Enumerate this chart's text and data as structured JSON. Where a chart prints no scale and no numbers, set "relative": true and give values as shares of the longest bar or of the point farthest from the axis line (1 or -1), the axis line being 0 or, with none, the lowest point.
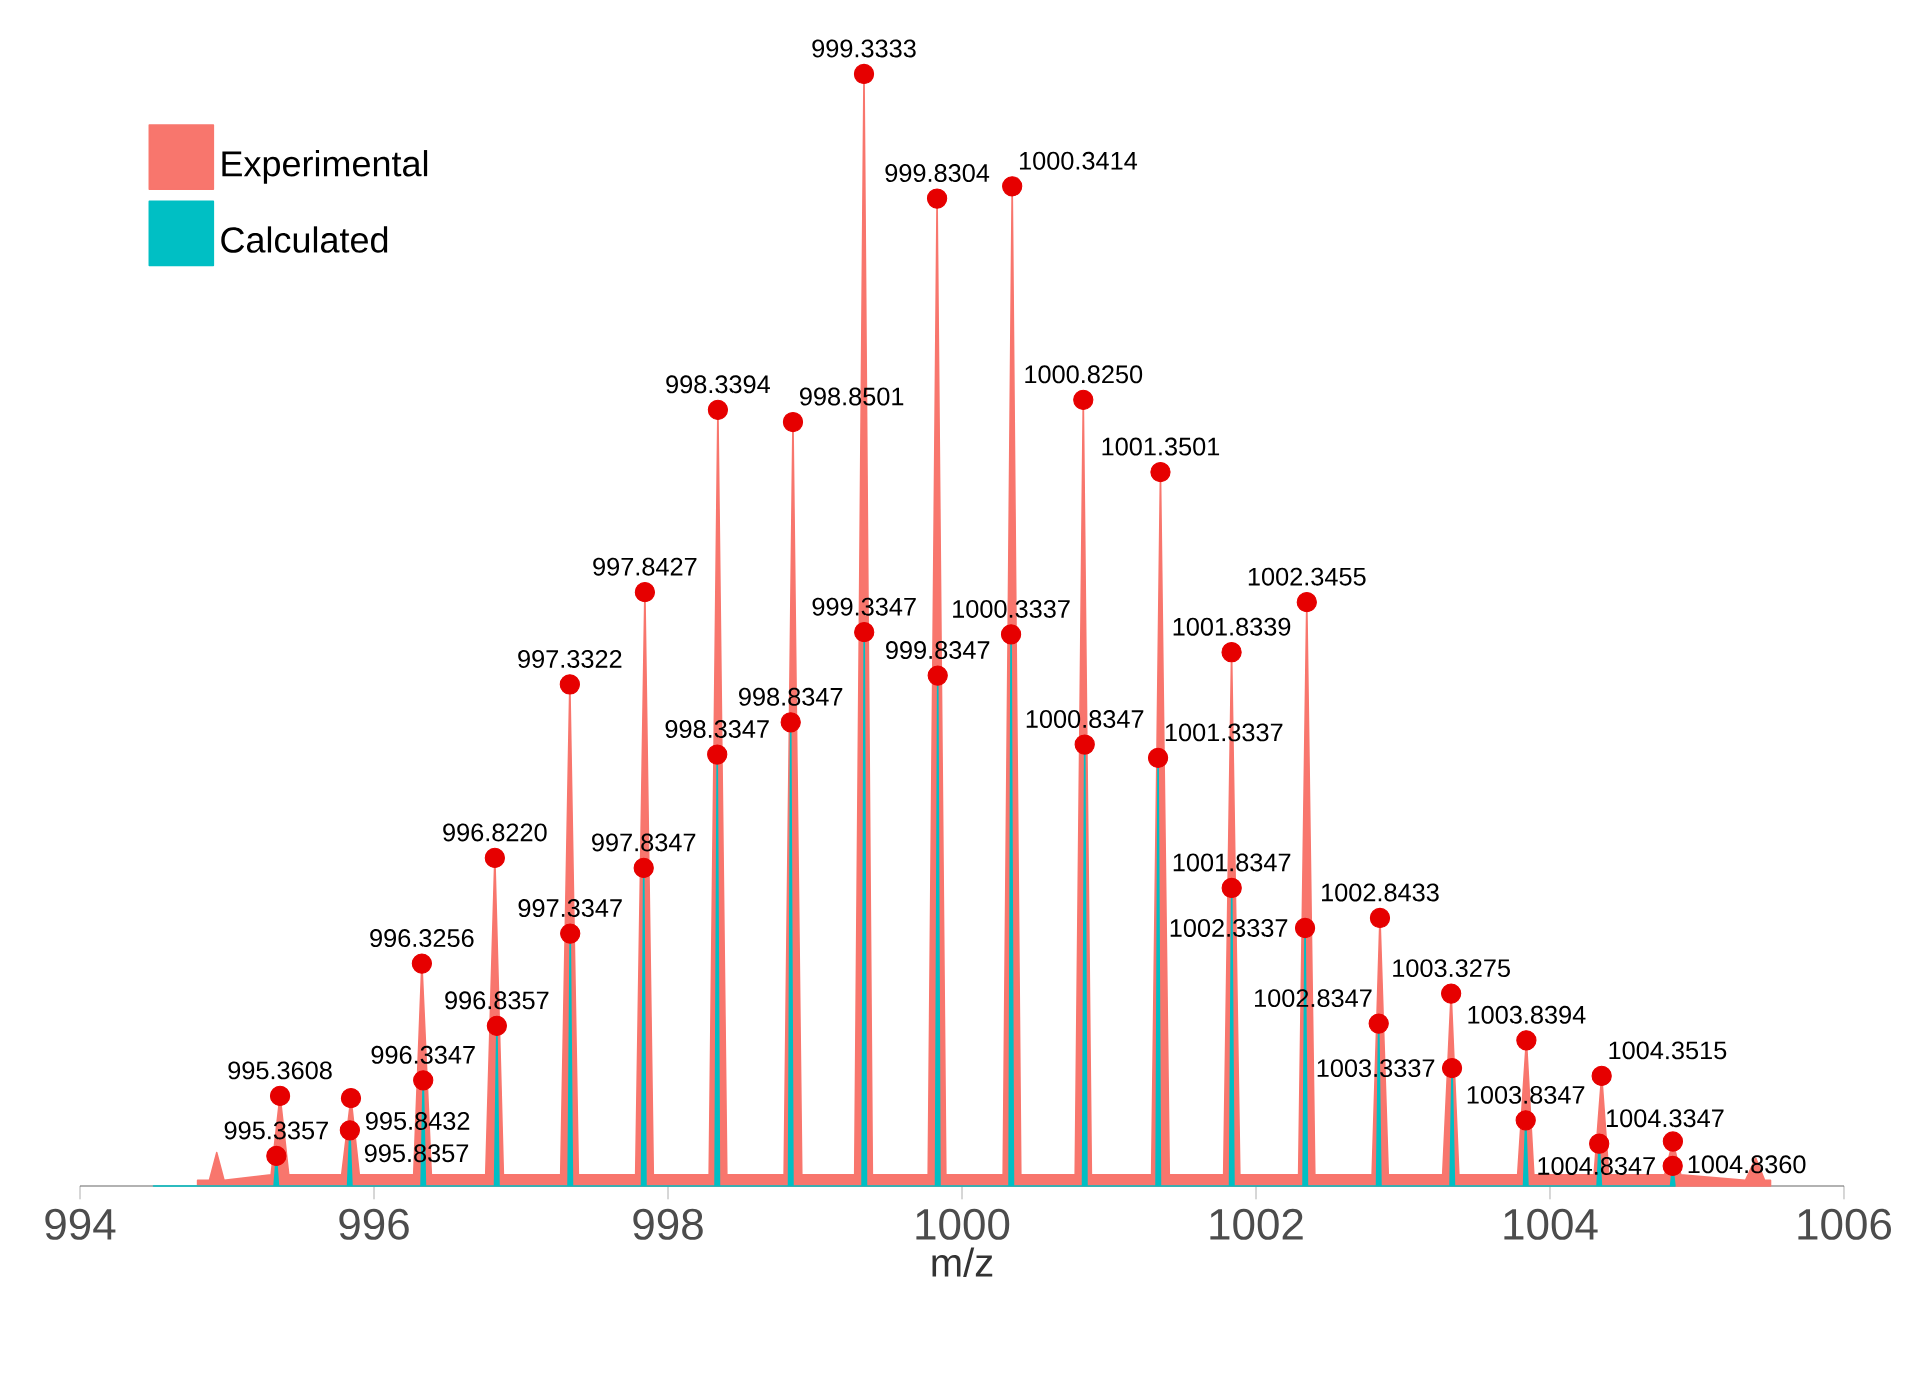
{
  "chart_data": {
    "type": "area",
    "relative": true,
    "xlabel": "m/z",
    "xlim": [
      994,
      1006
    ],
    "xticks": [
      994,
      996,
      998,
      1000,
      1002,
      1004,
      1006
    ],
    "legend": "top left",
    "series": [
      {
        "name": "Experimental",
        "color": "#f8766d",
        "x": [
          994.8,
          994.88,
          994.93,
          994.98,
          995.3,
          995.3608,
          995.42,
          995.78,
          995.8432,
          995.9,
          996.27,
          996.3256,
          996.39,
          996.76,
          996.822,
          996.88,
          997.27,
          997.3322,
          997.39,
          997.78,
          997.8427,
          997.9,
          998.28,
          998.3394,
          998.4,
          998.79,
          998.8501,
          998.91,
          999.27,
          999.3333,
          999.39,
          999.77,
          999.8304,
          999.89,
          1000.28,
          1000.3414,
          1000.4,
          1000.77,
          1000.825,
          1000.88,
          1001.29,
          1001.3501,
          1001.41,
          1001.78,
          1001.8339,
          1001.89,
          1002.29,
          1002.3455,
          1002.4,
          1002.79,
          1002.8433,
          1002.9,
          1003.27,
          1003.3275,
          1003.38,
          1003.78,
          1003.8394,
          1003.89,
          1004.3,
          1004.3515,
          1004.4,
          1004.78,
          1004.836,
          1004.89,
          1005.33,
          1005.4,
          1005.46,
          1005.5
        ],
        "values": [
          0.005,
          0.005,
          0.03,
          0.005,
          0.01,
          0.081,
          0.01,
          0.01,
          0.079,
          0.01,
          0.01,
          0.2,
          0.01,
          0.01,
          0.295,
          0.01,
          0.01,
          0.451,
          0.01,
          0.01,
          0.534,
          0.01,
          0.01,
          0.698,
          0.01,
          0.01,
          0.687,
          0.01,
          0.01,
          1.0,
          0.01,
          0.01,
          0.888,
          0.01,
          0.01,
          0.899,
          0.01,
          0.01,
          0.707,
          0.01,
          0.01,
          0.642,
          0.01,
          0.01,
          0.48,
          0.01,
          0.01,
          0.525,
          0.01,
          0.01,
          0.241,
          0.01,
          0.01,
          0.173,
          0.01,
          0.01,
          0.131,
          0.01,
          0.01,
          0.099,
          0.01,
          0.01,
          0.04,
          0.01,
          0.005,
          0.025,
          0.005,
          0.005
        ]
      },
      {
        "name": "Calculated",
        "color": "#00bfc4",
        "x": [
          994.5,
          995.32,
          995.3357,
          995.35,
          995.82,
          995.8357,
          995.85,
          996.32,
          996.3347,
          996.35,
          996.82,
          996.8357,
          996.85,
          997.32,
          997.3347,
          997.35,
          997.82,
          997.8347,
          997.85,
          998.32,
          998.3347,
          998.35,
          998.82,
          998.8347,
          998.85,
          999.32,
          999.3347,
          999.35,
          999.82,
          999.8347,
          999.85,
          1000.32,
          1000.3337,
          1000.35,
          1000.82,
          1000.8347,
          1000.85,
          1001.32,
          1001.3337,
          1001.35,
          1001.82,
          1001.8347,
          1001.85,
          1002.32,
          1002.3337,
          1002.35,
          1002.82,
          1002.8347,
          1002.85,
          1003.32,
          1003.3337,
          1003.35,
          1003.82,
          1003.8347,
          1003.85,
          1004.32,
          1004.3347,
          1004.35,
          1004.82,
          1004.8347,
          1004.85
        ],
        "values": [
          0,
          0,
          0.027,
          0,
          0,
          0.05,
          0,
          0,
          0.095,
          0,
          0,
          0.144,
          0,
          0,
          0.227,
          0,
          0,
          0.286,
          0,
          0,
          0.388,
          0,
          0,
          0.417,
          0,
          0,
          0.498,
          0,
          0,
          0.459,
          0,
          0,
          0.496,
          0,
          0,
          0.397,
          0,
          0,
          0.385,
          0,
          0,
          0.268,
          0,
          0,
          0.232,
          0,
          0,
          0.146,
          0,
          0,
          0.106,
          0,
          0,
          0.059,
          0,
          0,
          0.038,
          0,
          0,
          0.018,
          0
        ]
      },
      {
        "type": "scatter",
        "color": "#e60000",
        "marker": "circle",
        "x": [
          995.3608,
          995.3357,
          995.8432,
          995.8357,
          996.3256,
          996.3347,
          996.822,
          996.8357,
          997.3322,
          997.3347,
          997.8427,
          997.8347,
          998.3394,
          998.3347,
          998.8501,
          998.8347,
          999.3333,
          999.3347,
          999.8304,
          999.8347,
          1000.3414,
          1000.3337,
          1000.825,
          1000.8347,
          1001.3501,
          1001.3337,
          1001.8339,
          1001.8347,
          1002.3455,
          1002.3337,
          1002.8433,
          1002.8347,
          1003.3275,
          1003.3337,
          1003.8394,
          1003.8347,
          1004.3515,
          1004.3347,
          1004.836,
          1004.8347
        ],
        "values": [
          0.081,
          0.027,
          0.079,
          0.05,
          0.2,
          0.095,
          0.295,
          0.144,
          0.451,
          0.227,
          0.534,
          0.286,
          0.698,
          0.388,
          0.687,
          0.417,
          1.0,
          0.498,
          0.888,
          0.459,
          0.899,
          0.496,
          0.707,
          0.397,
          0.642,
          0.385,
          0.48,
          0.268,
          0.525,
          0.232,
          0.241,
          0.146,
          0.173,
          0.106,
          0.131,
          0.059,
          0.099,
          0.038,
          0.04,
          0.018
        ]
      }
    ],
    "annotations": [
      {
        "text": "995.3608",
        "x": 995.3608,
        "y": 0.081
      },
      {
        "text": "995.3357",
        "x": 995.3357,
        "y": 0.027
      },
      {
        "text": "995.8432",
        "x": 995.8432,
        "y": 0.079
      },
      {
        "text": "995.8357",
        "x": 995.8357,
        "y": 0.05
      },
      {
        "text": "996.3256",
        "x": 996.3256,
        "y": 0.2
      },
      {
        "text": "996.3347",
        "x": 996.3347,
        "y": 0.095
      },
      {
        "text": "996.8220",
        "x": 996.822,
        "y": 0.295
      },
      {
        "text": "996.8357",
        "x": 996.8357,
        "y": 0.144
      },
      {
        "text": "997.3322",
        "x": 997.3322,
        "y": 0.451
      },
      {
        "text": "997.3347",
        "x": 997.3347,
        "y": 0.227
      },
      {
        "text": "997.8427",
        "x": 997.8427,
        "y": 0.534
      },
      {
        "text": "997.8347",
        "x": 997.8347,
        "y": 0.286
      },
      {
        "text": "998.3394",
        "x": 998.3394,
        "y": 0.698
      },
      {
        "text": "998.3347",
        "x": 998.3347,
        "y": 0.388
      },
      {
        "text": "998.8501",
        "x": 998.8501,
        "y": 0.687
      },
      {
        "text": "998.8347",
        "x": 998.8347,
        "y": 0.417
      },
      {
        "text": "999.3333",
        "x": 999.3333,
        "y": 1.0
      },
      {
        "text": "999.3347",
        "x": 999.3347,
        "y": 0.498
      },
      {
        "text": "999.8304",
        "x": 999.8304,
        "y": 0.888
      },
      {
        "text": "999.8347",
        "x": 999.8347,
        "y": 0.459
      },
      {
        "text": "1000.3414",
        "x": 1000.3414,
        "y": 0.899
      },
      {
        "text": "1000.3337",
        "x": 1000.3337,
        "y": 0.496
      },
      {
        "text": "1000.8250",
        "x": 1000.825,
        "y": 0.707
      },
      {
        "text": "1000.8347",
        "x": 1000.8347,
        "y": 0.397
      },
      {
        "text": "1001.3501",
        "x": 1001.3501,
        "y": 0.642
      },
      {
        "text": "1001.3337",
        "x": 1001.3337,
        "y": 0.385
      },
      {
        "text": "1001.8339",
        "x": 1001.8339,
        "y": 0.48
      },
      {
        "text": "1001.8347",
        "x": 1001.8347,
        "y": 0.268
      },
      {
        "text": "1002.3455",
        "x": 1002.3455,
        "y": 0.525
      },
      {
        "text": "1002.3337",
        "x": 1002.3337,
        "y": 0.232
      },
      {
        "text": "1002.8433",
        "x": 1002.8433,
        "y": 0.241
      },
      {
        "text": "1002.8347",
        "x": 1002.8347,
        "y": 0.146
      },
      {
        "text": "1003.3275",
        "x": 1003.3275,
        "y": 0.173
      },
      {
        "text": "1003.3337",
        "x": 1003.3337,
        "y": 0.106
      },
      {
        "text": "1003.8394",
        "x": 1003.8394,
        "y": 0.131
      },
      {
        "text": "1003.8347",
        "x": 1003.8347,
        "y": 0.059
      },
      {
        "text": "1004.3515",
        "x": 1004.3515,
        "y": 0.099
      },
      {
        "text": "1004.3347",
        "x": 1004.3347,
        "y": 0.038
      },
      {
        "text": "1004.8360",
        "x": 1004.836,
        "y": 0.04
      },
      {
        "text": "1004.8347",
        "x": 1004.8347,
        "y": 0.018
      }
    ]
  }
}
